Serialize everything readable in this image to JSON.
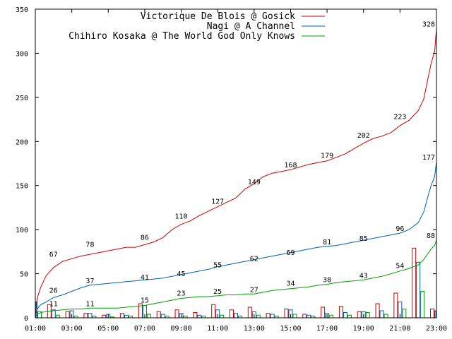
{
  "chart_data": {
    "type": "line",
    "xlim": [
      1,
      23
    ],
    "ylim": [
      0,
      350
    ],
    "xticks": [
      {
        "value": 1,
        "label": "01:00"
      },
      {
        "value": 3,
        "label": "03:00"
      },
      {
        "value": 5,
        "label": "05:00"
      },
      {
        "value": 7,
        "label": "07:00"
      },
      {
        "value": 9,
        "label": "09:00"
      },
      {
        "value": 11,
        "label": "11:00"
      },
      {
        "value": 13,
        "label": "13:00"
      },
      {
        "value": 15,
        "label": "15:00"
      },
      {
        "value": 17,
        "label": "17:00"
      },
      {
        "value": 19,
        "label": "19:00"
      },
      {
        "value": 21,
        "label": "21:00"
      },
      {
        "value": 23,
        "label": "23:00"
      }
    ],
    "yticks": [
      {
        "value": 0,
        "label": "0"
      },
      {
        "value": 50,
        "label": "50"
      },
      {
        "value": 100,
        "label": "100"
      },
      {
        "value": 150,
        "label": "150"
      },
      {
        "value": 200,
        "label": "200"
      },
      {
        "value": 250,
        "label": "250"
      },
      {
        "value": 300,
        "label": "300"
      },
      {
        "value": 350,
        "label": "350"
      }
    ],
    "legend_position": "top-right",
    "series": [
      {
        "name": "Victorique De Blois @ Gosick",
        "color": "#cc0000",
        "line": [
          [
            1,
            0
          ],
          [
            1.1,
            22
          ],
          [
            1.3,
            35
          ],
          [
            1.6,
            48
          ],
          [
            2,
            57
          ],
          [
            2.5,
            64
          ],
          [
            3,
            67
          ],
          [
            3.5,
            70
          ],
          [
            4,
            72
          ],
          [
            4.5,
            74
          ],
          [
            5,
            76
          ],
          [
            5.5,
            78
          ],
          [
            6,
            80
          ],
          [
            6.5,
            80
          ],
          [
            7,
            83
          ],
          [
            7.5,
            86
          ],
          [
            8,
            91
          ],
          [
            8.5,
            100
          ],
          [
            9,
            106
          ],
          [
            9.5,
            110
          ],
          [
            10,
            116
          ],
          [
            10.5,
            121
          ],
          [
            11,
            126
          ],
          [
            11.5,
            131
          ],
          [
            12,
            136
          ],
          [
            12.5,
            146
          ],
          [
            13,
            152
          ],
          [
            13.5,
            160
          ],
          [
            14,
            164
          ],
          [
            14.5,
            166
          ],
          [
            15,
            168
          ],
          [
            15.5,
            171
          ],
          [
            16,
            174
          ],
          [
            16.5,
            176
          ],
          [
            17,
            178
          ],
          [
            17.5,
            182
          ],
          [
            18,
            186
          ],
          [
            18.5,
            192
          ],
          [
            19,
            198
          ],
          [
            19.5,
            203
          ],
          [
            20,
            206
          ],
          [
            20.5,
            210
          ],
          [
            21,
            218
          ],
          [
            21.5,
            224
          ],
          [
            22,
            235
          ],
          [
            22.3,
            248
          ],
          [
            22.5,
            268
          ],
          [
            22.7,
            288
          ],
          [
            22.9,
            302
          ],
          [
            23,
            328
          ]
        ],
        "labels": [
          {
            "x": 2,
            "y": 67,
            "text": "67"
          },
          {
            "x": 4,
            "y": 78,
            "text": "78"
          },
          {
            "x": 7,
            "y": 86,
            "text": "86"
          },
          {
            "x": 9,
            "y": 110,
            "text": "110"
          },
          {
            "x": 11,
            "y": 127,
            "text": "127"
          },
          {
            "x": 13,
            "y": 149,
            "text": "149"
          },
          {
            "x": 15,
            "y": 168,
            "text": "168"
          },
          {
            "x": 17,
            "y": 179,
            "text": "179"
          },
          {
            "x": 19,
            "y": 202,
            "text": "202"
          },
          {
            "x": 21,
            "y": 223,
            "text": "223"
          },
          {
            "x": 23,
            "y": 328,
            "text": "328"
          }
        ],
        "bars": [
          [
            1,
            52
          ],
          [
            2,
            15
          ],
          [
            3,
            7
          ],
          [
            4,
            5
          ],
          [
            5,
            3
          ],
          [
            6,
            5
          ],
          [
            7,
            16
          ],
          [
            8,
            7
          ],
          [
            9,
            9
          ],
          [
            10,
            6
          ],
          [
            11,
            15
          ],
          [
            12,
            9
          ],
          [
            13,
            12
          ],
          [
            14,
            5
          ],
          [
            15,
            10
          ],
          [
            16,
            4
          ],
          [
            17,
            12
          ],
          [
            18,
            13
          ],
          [
            19,
            7
          ],
          [
            20,
            16
          ],
          [
            21,
            28
          ],
          [
            22,
            79
          ],
          [
            23,
            10
          ]
        ]
      },
      {
        "name": "Nagi @ A Channel",
        "color": "#0060ad",
        "line": [
          [
            1,
            0
          ],
          [
            1.1,
            10
          ],
          [
            1.3,
            15
          ],
          [
            1.6,
            18
          ],
          [
            2,
            23
          ],
          [
            2.5,
            26
          ],
          [
            3,
            30
          ],
          [
            3.5,
            34
          ],
          [
            4,
            37
          ],
          [
            4.5,
            38
          ],
          [
            5,
            39
          ],
          [
            5.5,
            40
          ],
          [
            6,
            41
          ],
          [
            6.5,
            42
          ],
          [
            7,
            43
          ],
          [
            7.5,
            44
          ],
          [
            8,
            45
          ],
          [
            8.5,
            47
          ],
          [
            9,
            49
          ],
          [
            9.5,
            51
          ],
          [
            10,
            53
          ],
          [
            10.5,
            55
          ],
          [
            11,
            58
          ],
          [
            11.5,
            60
          ],
          [
            12,
            62
          ],
          [
            12.5,
            64
          ],
          [
            13,
            66
          ],
          [
            13.5,
            68
          ],
          [
            14,
            70
          ],
          [
            14.5,
            72
          ],
          [
            15,
            74
          ],
          [
            15.5,
            76
          ],
          [
            16,
            78
          ],
          [
            16.5,
            80
          ],
          [
            17,
            81
          ],
          [
            17.5,
            82
          ],
          [
            18,
            84
          ],
          [
            18.5,
            86
          ],
          [
            19,
            88
          ],
          [
            19.5,
            90
          ],
          [
            20,
            92
          ],
          [
            20.5,
            94
          ],
          [
            21,
            96
          ],
          [
            21.5,
            100
          ],
          [
            22,
            108
          ],
          [
            22.3,
            120
          ],
          [
            22.5,
            135
          ],
          [
            22.7,
            150
          ],
          [
            22.9,
            160
          ],
          [
            23,
            177
          ]
        ],
        "labels": [
          {
            "x": 2,
            "y": 26,
            "text": "26"
          },
          {
            "x": 4,
            "y": 37,
            "text": "37"
          },
          {
            "x": 7,
            "y": 41,
            "text": "41"
          },
          {
            "x": 9,
            "y": 45,
            "text": "45"
          },
          {
            "x": 11,
            "y": 55,
            "text": "55"
          },
          {
            "x": 13,
            "y": 62,
            "text": "62"
          },
          {
            "x": 15,
            "y": 69,
            "text": "69"
          },
          {
            "x": 17,
            "y": 81,
            "text": "81"
          },
          {
            "x": 19,
            "y": 85,
            "text": "85"
          },
          {
            "x": 21,
            "y": 96,
            "text": "96"
          },
          {
            "x": 23,
            "y": 177,
            "text": "177"
          }
        ],
        "bars": [
          [
            1,
            18
          ],
          [
            2,
            9
          ],
          [
            3,
            8
          ],
          [
            4,
            5
          ],
          [
            5,
            4
          ],
          [
            6,
            3
          ],
          [
            7,
            14
          ],
          [
            8,
            4
          ],
          [
            9,
            5
          ],
          [
            10,
            3
          ],
          [
            11,
            9
          ],
          [
            12,
            5
          ],
          [
            13,
            7
          ],
          [
            14,
            4
          ],
          [
            15,
            9
          ],
          [
            16,
            3
          ],
          [
            17,
            5
          ],
          [
            18,
            6
          ],
          [
            19,
            7
          ],
          [
            20,
            8
          ],
          [
            21,
            18
          ],
          [
            22,
            63
          ],
          [
            23,
            8
          ]
        ]
      },
      {
        "name": "Chihiro Kosaka @ The World God Only Knows",
        "color": "#009e00",
        "line": [
          [
            1,
            0
          ],
          [
            1.1,
            4
          ],
          [
            1.3,
            6
          ],
          [
            1.6,
            7
          ],
          [
            2,
            8
          ],
          [
            2.5,
            9
          ],
          [
            3,
            10
          ],
          [
            3.5,
            10
          ],
          [
            4,
            11
          ],
          [
            4.5,
            11
          ],
          [
            5,
            11
          ],
          [
            5.5,
            11
          ],
          [
            6,
            12
          ],
          [
            6.5,
            13
          ],
          [
            7,
            14
          ],
          [
            7.5,
            16
          ],
          [
            8,
            18
          ],
          [
            8.5,
            20
          ],
          [
            9,
            22
          ],
          [
            9.5,
            23
          ],
          [
            10,
            24
          ],
          [
            10.5,
            24
          ],
          [
            11,
            25
          ],
          [
            11.5,
            26
          ],
          [
            12,
            26
          ],
          [
            12.5,
            27
          ],
          [
            13,
            27
          ],
          [
            13.5,
            29
          ],
          [
            14,
            31
          ],
          [
            14.5,
            32
          ],
          [
            15,
            33
          ],
          [
            15.5,
            34
          ],
          [
            16,
            35
          ],
          [
            16.5,
            37
          ],
          [
            17,
            38
          ],
          [
            17.5,
            40
          ],
          [
            18,
            41
          ],
          [
            18.5,
            42
          ],
          [
            19,
            43
          ],
          [
            19.5,
            45
          ],
          [
            20,
            47
          ],
          [
            20.5,
            50
          ],
          [
            21,
            53
          ],
          [
            21.5,
            56
          ],
          [
            22,
            60
          ],
          [
            22.3,
            66
          ],
          [
            22.5,
            72
          ],
          [
            22.7,
            78
          ],
          [
            22.9,
            82
          ],
          [
            23,
            88
          ]
        ],
        "labels": [
          {
            "x": 2,
            "y": 11,
            "text": "11"
          },
          {
            "x": 4,
            "y": 11,
            "text": "11"
          },
          {
            "x": 7,
            "y": 15,
            "text": "15"
          },
          {
            "x": 9,
            "y": 23,
            "text": "23"
          },
          {
            "x": 11,
            "y": 25,
            "text": "25"
          },
          {
            "x": 13,
            "y": 27,
            "text": "27"
          },
          {
            "x": 15,
            "y": 34,
            "text": "34"
          },
          {
            "x": 17,
            "y": 38,
            "text": "38"
          },
          {
            "x": 19,
            "y": 43,
            "text": "43"
          },
          {
            "x": 21,
            "y": 54,
            "text": "54"
          },
          {
            "x": 23,
            "y": 88,
            "text": "88"
          }
        ],
        "bars": [
          [
            1,
            7
          ],
          [
            2,
            3
          ],
          [
            3,
            2
          ],
          [
            4,
            2
          ],
          [
            5,
            1
          ],
          [
            6,
            2
          ],
          [
            7,
            4
          ],
          [
            8,
            2
          ],
          [
            9,
            2
          ],
          [
            10,
            2
          ],
          [
            11,
            3
          ],
          [
            12,
            2
          ],
          [
            13,
            3
          ],
          [
            14,
            2
          ],
          [
            15,
            4
          ],
          [
            16,
            2
          ],
          [
            17,
            3
          ],
          [
            18,
            3
          ],
          [
            19,
            6
          ],
          [
            20,
            4
          ],
          [
            21,
            10
          ],
          [
            22,
            30
          ],
          [
            23,
            5
          ]
        ]
      }
    ]
  }
}
